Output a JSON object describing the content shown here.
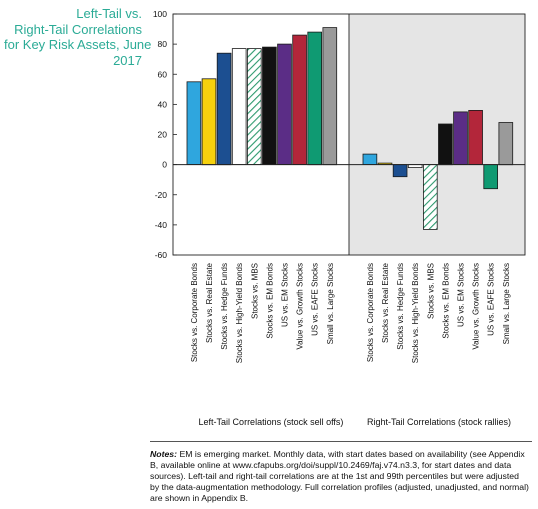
{
  "title_lines": [
    "Left-Tail vs.",
    "Right-Tail Correlations",
    "for Key Risk Assets, June",
    "2017"
  ],
  "colors": {
    "title": "#2bab96",
    "right_panel_bg": "#e5e5e5",
    "bar_colors": [
      "#2fa6de",
      "#f6d10d",
      "#1c4f91",
      "#ffffff",
      "hatch",
      "#111111",
      "#5b2d86",
      "#b3263a",
      "#0f9a72",
      "#9a9a9a"
    ],
    "hatch_stroke": "#2e9a6e",
    "bar_outline": "#1a1a1a"
  },
  "chart_data": {
    "type": "bar",
    "categories": [
      "Stocks vs. Corporate Bonds",
      "Stocks vs. Real Estate",
      "Stocks vs. Hedge Funds",
      "Stocks vs. High-Yield Bonds",
      "Stocks vs. MBS",
      "Stocks vs. EM Bonds",
      "US vs. EM Stocks",
      "Value vs. Growth Stocks",
      "US vs. EAFE Stocks",
      "Small vs. Large Stocks"
    ],
    "series": [
      {
        "name": "Left-Tail Correlations (stock sell offs)",
        "values": [
          55,
          57,
          74,
          77,
          77,
          78,
          80,
          86,
          88,
          91
        ]
      },
      {
        "name": "Right-Tail Correlations (stock rallies)",
        "values": [
          7,
          1,
          -8,
          -2,
          -43,
          27,
          35,
          36,
          -16,
          28
        ]
      }
    ],
    "ylim": [
      -60,
      100
    ],
    "yticks": [
      -60,
      -40,
      -20,
      0,
      20,
      40,
      60,
      80,
      100
    ],
    "grid": false
  },
  "notes": {
    "label": "Notes:",
    "text": " EM is emerging market. Monthly data, with start dates based on availability (see Appendix B, available online at www.cfapubs.org/doi/suppl/10.2469/faj.v74.n3.3, for start dates and data sources). Left-tail and right-tail correlations are at the 1st and 99th percentiles but were adjusted by the data-augmentation methodology. Full correlation profiles (adjusted, unadjusted, and normal) are shown in Appendix B."
  }
}
